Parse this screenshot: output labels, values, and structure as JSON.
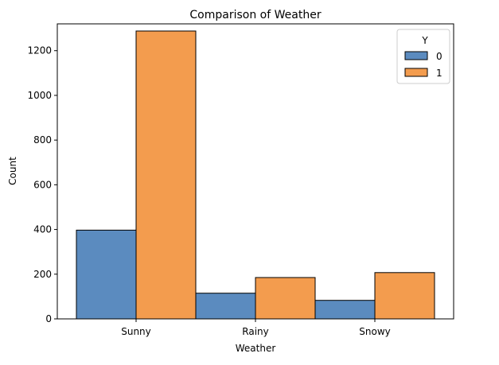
{
  "chart_data": {
    "type": "bar",
    "title": "Comparison of Weather",
    "xlabel": "Weather",
    "ylabel": "Count",
    "categories": [
      "Sunny",
      "Rainy",
      "Snowy"
    ],
    "ylim": [
      0,
      1320
    ],
    "yticks": [
      0,
      200,
      400,
      600,
      800,
      1000,
      1200
    ],
    "grid": false,
    "legend": {
      "title": "Y",
      "placement": "top-right"
    },
    "series": [
      {
        "name": "0",
        "color": "#5b8bbf",
        "values": [
          397,
          115,
          83
        ]
      },
      {
        "name": "1",
        "color": "#f39c4e",
        "values": [
          1288,
          185,
          207
        ]
      }
    ]
  }
}
